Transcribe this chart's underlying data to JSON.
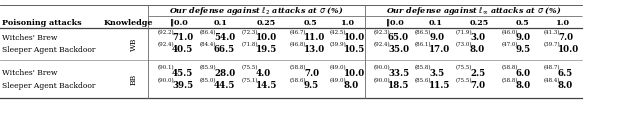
{
  "fig_width": 6.4,
  "fig_height": 1.27,
  "dpi": 100,
  "header_l2": "Our defense against $\\ell_2$ attacks at $\\sigma$ (%)",
  "header_linf": "Our defense against $\\ell_\\infty$ attacks at $\\sigma$ (%)",
  "col_subheaders_l2": [
    "‖0.0",
    "0.1",
    "0.25",
    "0.5",
    "1.0"
  ],
  "col_subheaders_linf": [
    "‖0.0",
    "0.1",
    "0.25",
    "0.5",
    "1.0"
  ],
  "attack_col_label": "Poisoning attacks",
  "knowledge_col_label": "Knowledge",
  "groups": [
    {
      "knowledge": "WB",
      "rows": [
        {
          "attack": "Witches' Brew",
          "l2": [
            [
              "92.2",
              "71.0"
            ],
            [
              "86.4",
              "54.0"
            ],
            [
              "72.3",
              "10.0"
            ],
            [
              "46.7",
              "11.0"
            ],
            [
              "42.5",
              "10.0"
            ]
          ],
          "linf": [
            [
              "92.3",
              "65.0"
            ],
            [
              "86.5",
              "9.0"
            ],
            [
              "71.9",
              "3.0"
            ],
            [
              "46.0",
              "9.0"
            ],
            [
              "41.3",
              "7.0"
            ]
          ]
        },
        {
          "attack": "Sleeper Agent Backdoor",
          "l2": [
            [
              "92.4",
              "40.5"
            ],
            [
              "84.4",
              "66.5"
            ],
            [
              "71.8",
              "19.5"
            ],
            [
              "46.8",
              "13.0"
            ],
            [
              "39.9",
              "10.5"
            ]
          ],
          "linf": [
            [
              "92.4",
              "35.0"
            ],
            [
              "86.1",
              "17.0"
            ],
            [
              "73.0",
              "8.0"
            ],
            [
              "47.0",
              "9.5"
            ],
            [
              "39.7",
              "10.0"
            ]
          ]
        }
      ]
    },
    {
      "knowledge": "BB",
      "rows": [
        {
          "attack": "Witches' Brew",
          "l2": [
            [
              "90.1",
              "45.5"
            ],
            [
              "85.9",
              "28.0"
            ],
            [
              "75.5",
              "4.0"
            ],
            [
              "58.8",
              "7.0"
            ],
            [
              "49.0",
              "10.0"
            ]
          ],
          "linf": [
            [
              "90.0",
              "33.5"
            ],
            [
              "85.8",
              "3.5"
            ],
            [
              "75.5",
              "2.5"
            ],
            [
              "58.8",
              "6.0"
            ],
            [
              "48.7",
              "6.5"
            ]
          ]
        },
        {
          "attack": "Sleeper Agent Backdoor",
          "l2": [
            [
              "90.0",
              "39.5"
            ],
            [
              "85.0",
              "44.5"
            ],
            [
              "75.1",
              "14.5"
            ],
            [
              "58.6",
              "9.5"
            ],
            [
              "49.0",
              "8.0"
            ]
          ],
          "linf": [
            [
              "90.0",
              "18.5"
            ],
            [
              "85.6",
              "11.5"
            ],
            [
              "75.5",
              "7.0"
            ],
            [
              "58.8",
              "8.0"
            ],
            [
              "48.4",
              "8.0"
            ]
          ]
        }
      ]
    }
  ]
}
